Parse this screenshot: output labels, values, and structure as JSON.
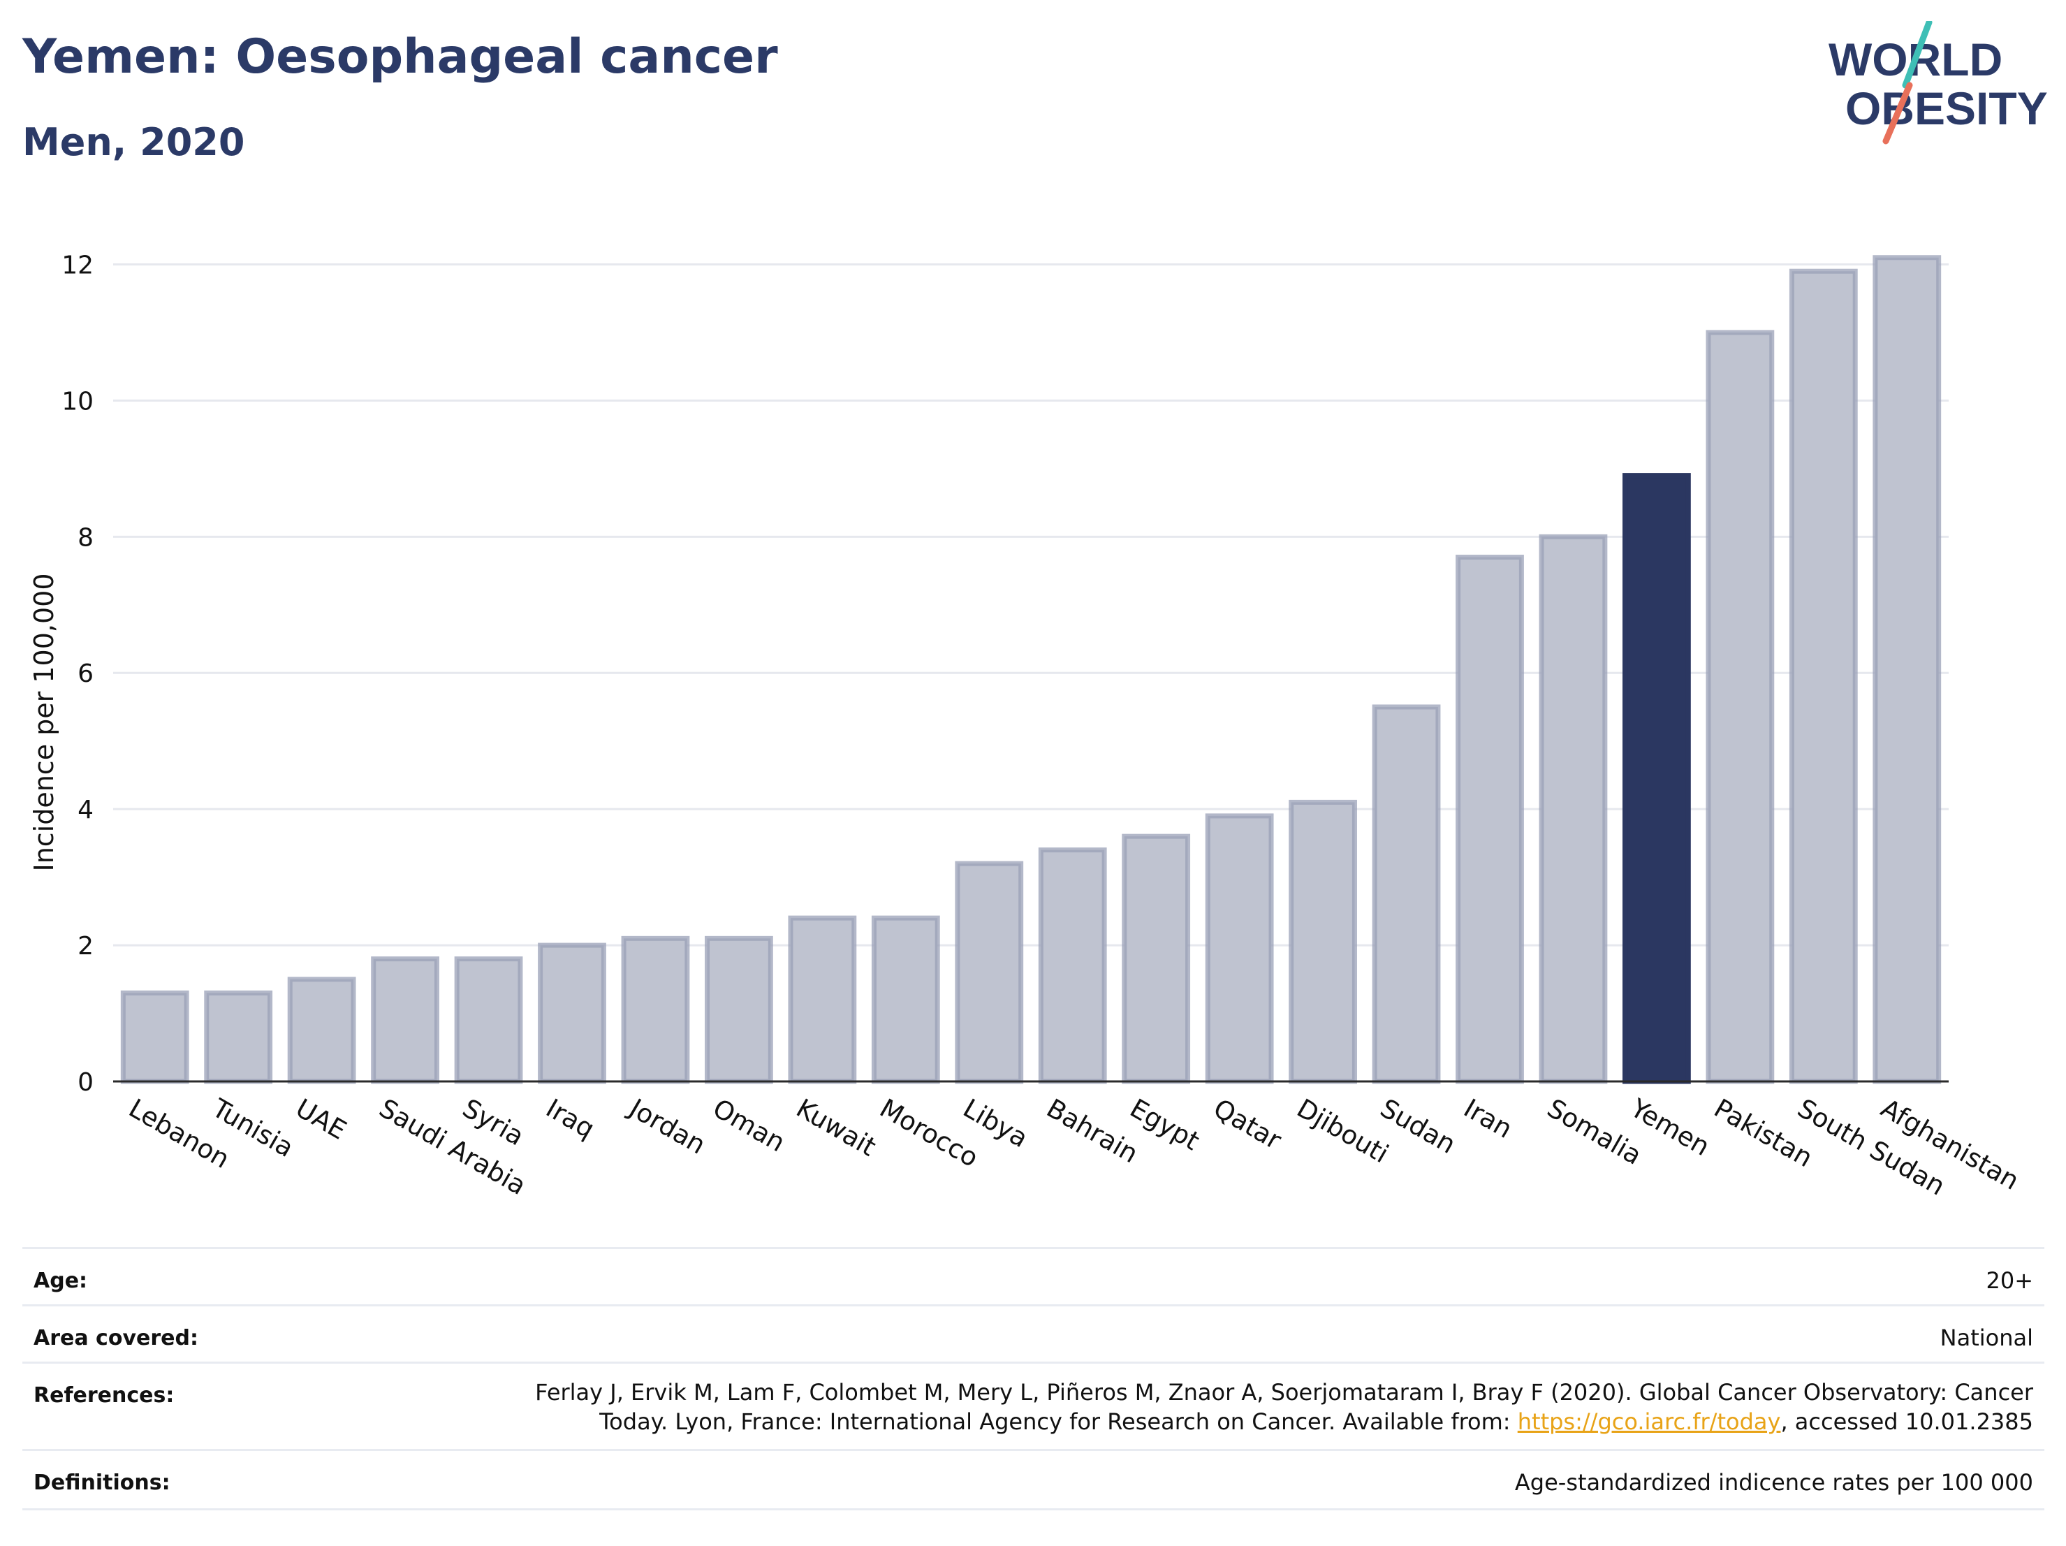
{
  "header": {
    "title": "Yemen: Oesophageal cancer",
    "subtitle": "Men, 2020"
  },
  "logo": {
    "line1": "WORLD",
    "line2": "OBESITY",
    "accent_colors": [
      "#3fbfb6",
      "#e8705a"
    ],
    "text_color": "#2b3a67"
  },
  "chart_data": {
    "type": "bar",
    "title": "Yemen: Oesophageal cancer",
    "subtitle": "Men, 2020",
    "xlabel": "",
    "ylabel": "Incidence per 100,000",
    "ylim": [
      0,
      12.6
    ],
    "yticks": [
      0,
      2,
      4,
      6,
      8,
      10,
      12
    ],
    "grid": true,
    "highlight": "Yemen",
    "colors": {
      "bar": "#bfc3d0",
      "bar_edge": "#9aa0b7",
      "highlight": "#2b3761"
    },
    "categories": [
      "Lebanon",
      "Tunisia",
      "UAE",
      "Saudi Arabia",
      "Syria",
      "Iraq",
      "Jordan",
      "Oman",
      "Kuwait",
      "Morocco",
      "Libya",
      "Bahrain",
      "Egypt",
      "Qatar",
      "Djibouti",
      "Sudan",
      "Iran",
      "Somalia",
      "Yemen",
      "Pakistan",
      "South Sudan",
      "Afghanistan"
    ],
    "values": [
      1.3,
      1.3,
      1.5,
      1.8,
      1.8,
      2.0,
      2.1,
      2.1,
      2.4,
      2.4,
      3.2,
      3.4,
      3.6,
      3.9,
      4.1,
      5.5,
      7.7,
      8.0,
      8.9,
      11.0,
      11.9,
      12.1
    ]
  },
  "info": {
    "age_label": "Age:",
    "age_value": "20+",
    "area_label": "Area covered:",
    "area_value": "National",
    "references_label": "References:",
    "references_line1": "Ferlay J, Ervik M, Lam F, Colombet M, Mery L, Piñeros M, Znaor A, Soerjomataram I, Bray F (2020). Global Cancer Observatory: Cancer",
    "references_line2_pre": "Today. Lyon, France: International Agency for Research on Cancer. Available from: ",
    "references_link": "https://gco.iarc.fr/today",
    "references_line2_post": ", accessed 10.01.2385",
    "definitions_label": "Definitions:",
    "definitions_value": "Age-standardized indicence rates per 100 000"
  }
}
